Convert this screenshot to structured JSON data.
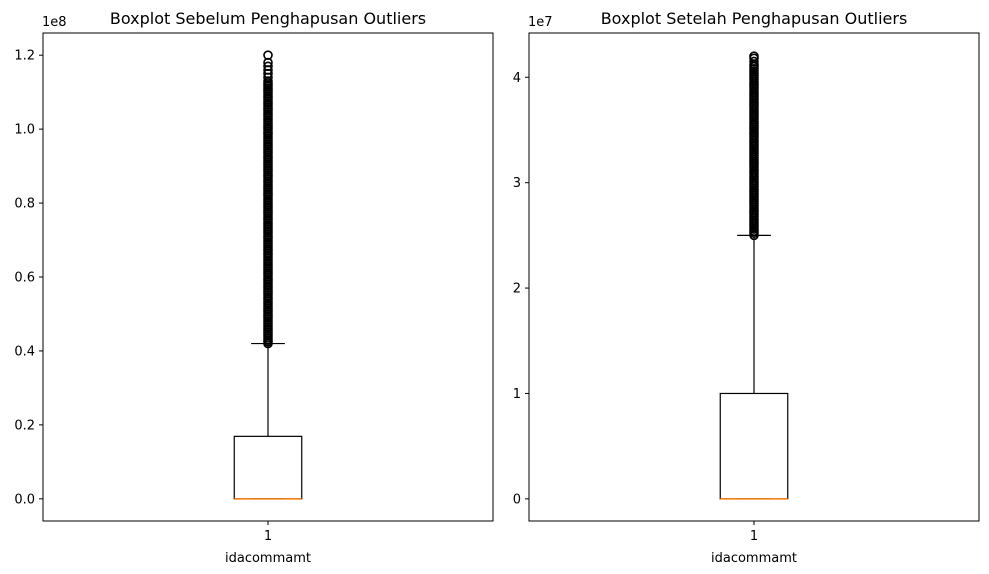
{
  "colors": {
    "box": "#000000",
    "median": "#ff7f0e",
    "outlier": "#000000",
    "axes": "#000000"
  },
  "chart_data": [
    {
      "type": "boxplot",
      "title": "Boxplot Sebelum Penghapusan Outliers",
      "xlabel": "idacommamt",
      "ylabel": "",
      "categories": [
        "1"
      ],
      "offset_text": "1e8",
      "scale": 100000000,
      "ylim": [
        -6000000,
        126000000
      ],
      "yticks": [
        0,
        20000000,
        40000000,
        60000000,
        80000000,
        100000000,
        120000000
      ],
      "ytick_labels": [
        "0.0",
        "0.2",
        "0.4",
        "0.6",
        "0.8",
        "1.0",
        "1.2"
      ],
      "grid": false,
      "box": {
        "min": 0,
        "q1": 0,
        "median": 0,
        "q3": 16900000,
        "max": 42000000
      },
      "outliers": [
        42000000,
        42500000,
        43000000,
        43500000,
        44000000,
        44500000,
        45000000,
        45500000,
        46000000,
        46500000,
        47000000,
        47500000,
        48000000,
        48500000,
        49000000,
        49500000,
        50000000,
        50500000,
        51000000,
        51500000,
        52000000,
        52500000,
        53000000,
        53500000,
        54000000,
        54500000,
        55000000,
        55500000,
        56000000,
        56500000,
        57000000,
        57500000,
        58000000,
        58500000,
        59000000,
        59500000,
        60000000,
        60500000,
        61000000,
        61500000,
        62000000,
        62500000,
        63000000,
        63500000,
        64000000,
        64500000,
        65000000,
        65500000,
        66000000,
        66500000,
        67000000,
        67500000,
        68000000,
        68500000,
        69000000,
        69500000,
        70000000,
        70500000,
        71000000,
        71500000,
        72000000,
        72500000,
        73000000,
        73500000,
        74000000,
        74500000,
        75000000,
        75500000,
        76000000,
        76500000,
        77000000,
        77500000,
        78000000,
        78500000,
        79000000,
        79500000,
        80000000,
        80500000,
        81000000,
        81500000,
        82000000,
        82500000,
        83000000,
        83500000,
        84000000,
        84500000,
        85000000,
        85500000,
        86000000,
        86500000,
        87000000,
        87500000,
        88000000,
        88500000,
        89000000,
        89500000,
        90000000,
        90500000,
        91000000,
        91500000,
        92000000,
        92500000,
        93000000,
        93500000,
        94000000,
        94500000,
        95000000,
        95500000,
        96000000,
        96500000,
        97000000,
        97500000,
        98000000,
        98500000,
        99000000,
        99500000,
        100000000,
        100500000,
        101000000,
        101500000,
        102000000,
        102500000,
        103000000,
        103500000,
        104000000,
        104500000,
        105000000,
        105500000,
        106000000,
        106500000,
        107000000,
        107500000,
        108000000,
        108500000,
        109000000,
        109500000,
        110000000,
        110500000,
        111000000,
        111500000,
        112000000,
        112500000,
        113000000,
        114000000,
        115000000,
        116000000,
        117000000,
        118000000,
        120000000
      ]
    },
    {
      "type": "boxplot",
      "title": "Boxplot Setelah Penghapusan Outliers",
      "xlabel": "idacommamt",
      "ylabel": "",
      "categories": [
        "1"
      ],
      "offset_text": "1e7",
      "scale": 10000000,
      "ylim": [
        -2100000,
        44200000
      ],
      "yticks": [
        0,
        10000000,
        20000000,
        30000000,
        40000000
      ],
      "ytick_labels": [
        "0",
        "1",
        "2",
        "3",
        "4"
      ],
      "grid": false,
      "box": {
        "min": 0,
        "q1": 0,
        "median": 0,
        "q3": 10000000,
        "max": 25000000
      },
      "outliers": [
        25000000,
        25200000,
        25400000,
        25600000,
        25800000,
        26000000,
        26200000,
        26400000,
        26600000,
        26800000,
        27000000,
        27200000,
        27400000,
        27600000,
        27800000,
        28000000,
        28200000,
        28400000,
        28600000,
        28800000,
        29000000,
        29200000,
        29400000,
        29600000,
        29800000,
        30000000,
        30200000,
        30400000,
        30600000,
        30800000,
        31000000,
        31200000,
        31400000,
        31600000,
        31800000,
        32000000,
        32200000,
        32400000,
        32600000,
        32800000,
        33000000,
        33200000,
        33400000,
        33600000,
        33800000,
        34000000,
        34200000,
        34400000,
        34600000,
        34800000,
        35000000,
        35200000,
        35400000,
        35600000,
        35800000,
        36000000,
        36200000,
        36400000,
        36600000,
        36800000,
        37000000,
        37200000,
        37400000,
        37600000,
        37800000,
        38000000,
        38200000,
        38400000,
        38600000,
        38800000,
        39000000,
        39200000,
        39400000,
        39600000,
        39800000,
        40000000,
        40200000,
        40400000,
        40600000,
        40800000,
        41000000,
        41200000,
        41500000,
        41800000,
        42000000
      ]
    }
  ]
}
